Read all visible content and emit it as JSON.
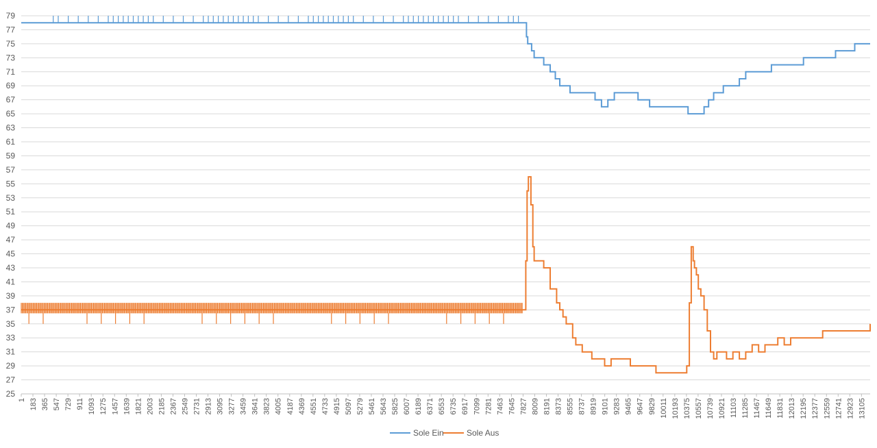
{
  "chart_data": {
    "type": "line",
    "title": "",
    "xlabel": "",
    "ylabel": "",
    "grid": true,
    "legend_position": "bottom",
    "xlim": [
      1,
      13240
    ],
    "ylim": [
      25,
      79
    ],
    "y_ticks": [
      25,
      27,
      29,
      31,
      33,
      35,
      37,
      39,
      41,
      43,
      45,
      47,
      49,
      51,
      53,
      55,
      57,
      59,
      61,
      63,
      65,
      67,
      69,
      71,
      73,
      75,
      77,
      79
    ],
    "x_ticks": [
      1,
      183,
      365,
      547,
      729,
      911,
      1093,
      1275,
      1457,
      1639,
      1821,
      2003,
      2185,
      2367,
      2549,
      2731,
      2913,
      3095,
      3277,
      3459,
      3641,
      3823,
      4005,
      4187,
      4369,
      4551,
      4733,
      4915,
      5097,
      5279,
      5461,
      5643,
      5825,
      6007,
      6189,
      6371,
      6553,
      6735,
      6917,
      7099,
      7281,
      7463,
      7645,
      7827,
      8009,
      8191,
      8373,
      8555,
      8737,
      8919,
      9101,
      9283,
      9465,
      9647,
      9829,
      10011,
      10193,
      10375,
      10557,
      10739,
      10921,
      11103,
      11285,
      11467,
      11649,
      11831,
      12013,
      12195,
      12377,
      12559,
      12741,
      12923,
      13105
    ],
    "series": [
      {
        "name": "Sole Ein",
        "color": "#5b9bd5",
        "x": [
          1,
          7850,
          7880,
          7900,
          7930,
          7960,
          8000,
          8050,
          8150,
          8250,
          8330,
          8400,
          8480,
          8560,
          8700,
          8850,
          8950,
          9050,
          9150,
          9250,
          9500,
          9620,
          9700,
          9800,
          9950,
          10150,
          10400,
          10500,
          10650,
          10720,
          10800,
          10950,
          11100,
          11200,
          11300,
          11500,
          11700,
          12000,
          12200,
          12300,
          12500,
          12700,
          12900,
          13000,
          13100,
          13240
        ],
        "y": [
          78,
          78,
          76,
          75,
          75,
          74,
          73,
          73,
          72,
          71,
          70,
          69,
          69,
          68,
          68,
          68,
          67,
          66,
          67,
          68,
          68,
          67,
          67,
          66,
          66,
          66,
          65,
          65,
          66,
          67,
          68,
          69,
          69,
          70,
          71,
          71,
          72,
          72,
          73,
          73,
          73,
          74,
          74,
          75,
          75,
          75
        ]
      },
      {
        "name": "Sole Aus",
        "color": "#ed7d31",
        "x": [
          1,
          7750,
          7800,
          7850,
          7870,
          7890,
          7910,
          7930,
          7950,
          7980,
          8000,
          8050,
          8100,
          8150,
          8200,
          8250,
          8300,
          8350,
          8400,
          8450,
          8500,
          8550,
          8600,
          8650,
          8700,
          8750,
          8800,
          8850,
          8900,
          8950,
          9000,
          9050,
          9100,
          9200,
          9300,
          9400,
          9500,
          9600,
          9700,
          9800,
          9900,
          10000,
          10100,
          10200,
          10300,
          10350,
          10380,
          10420,
          10450,
          10480,
          10500,
          10530,
          10560,
          10600,
          10650,
          10700,
          10750,
          10800,
          10850,
          10900,
          10950,
          11000,
          11100,
          11200,
          11300,
          11400,
          11500,
          11600,
          11700,
          11800,
          11900,
          12000,
          12100,
          12200,
          12300,
          12400,
          12500,
          12600,
          12700,
          12800,
          12900,
          13000,
          13100,
          13200,
          13240
        ],
        "y": [
          37,
          37,
          37,
          37,
          44,
          54,
          56,
          56,
          52,
          46,
          44,
          44,
          44,
          43,
          43,
          40,
          40,
          38,
          37,
          36,
          35,
          35,
          33,
          32,
          32,
          31,
          31,
          31,
          30,
          30,
          30,
          30,
          29,
          30,
          30,
          30,
          29,
          29,
          29,
          29,
          28,
          28,
          28,
          28,
          28,
          28,
          29,
          38,
          46,
          44,
          43,
          42,
          40,
          39,
          37,
          34,
          31,
          30,
          31,
          31,
          31,
          30,
          31,
          30,
          31,
          32,
          31,
          32,
          32,
          33,
          32,
          33,
          33,
          33,
          33,
          33,
          34,
          34,
          34,
          34,
          34,
          34,
          34,
          34,
          35
        ],
        "band_lower": [
          {
            "x_start": 1,
            "x_end": 7830,
            "low": 35
          }
        ]
      }
    ]
  }
}
